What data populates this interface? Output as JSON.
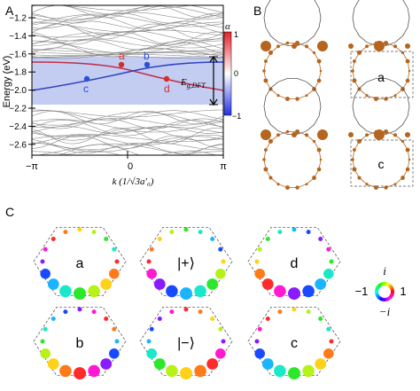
{
  "panels": {
    "A": "A",
    "B": "B",
    "C": "C"
  },
  "panelA": {
    "ylabel": "Energy (eV)",
    "xlabel": "k (1/√3a′₀)",
    "yticks": [
      "−1.2",
      "−1.4",
      "−1.6",
      "−1.8",
      "−2.0",
      "−2.2",
      "−2.4",
      "−2.6"
    ],
    "xticks": [
      "−π",
      "0",
      "π"
    ],
    "gap_label": "E",
    "gap_sub": "g,DFT",
    "points": [
      {
        "label": "a",
        "color": "#d42d2d"
      },
      {
        "label": "b",
        "color": "#2d4fd4"
      },
      {
        "label": "c",
        "color": "#2d4fd4"
      },
      {
        "label": "d",
        "color": "#d42d2d"
      }
    ],
    "colorbar": {
      "title": "α",
      "ticks": [
        "1",
        "0",
        "−1"
      ]
    }
  },
  "panelB": {
    "labels": [
      "a",
      "c"
    ]
  },
  "panelC": {
    "labels": [
      "a",
      "|+⟩",
      "d",
      "b",
      "|−⟩",
      "c"
    ],
    "phase_legend": {
      "top": "i",
      "left": "−1",
      "right": "1",
      "bottom": "−i"
    }
  }
}
